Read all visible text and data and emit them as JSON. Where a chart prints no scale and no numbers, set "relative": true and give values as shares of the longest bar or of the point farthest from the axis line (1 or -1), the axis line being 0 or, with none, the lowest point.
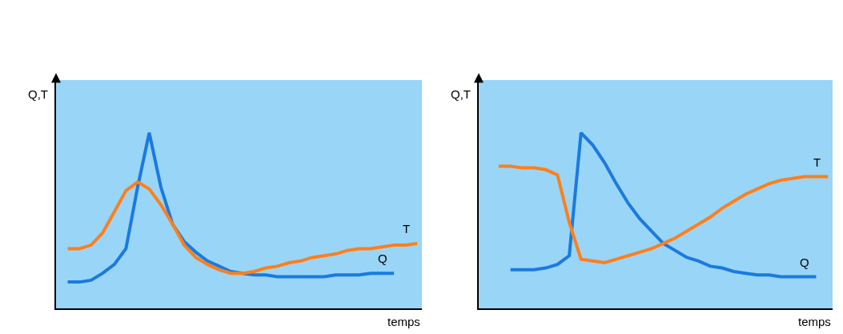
{
  "chart_data": [
    {
      "type": "line",
      "relative": true,
      "xlabel": "temps",
      "ylabel": "Q,T",
      "legend": false,
      "categories": [
        null,
        null,
        null,
        null,
        null,
        null,
        null,
        null,
        null,
        null,
        null,
        null,
        null,
        null,
        null,
        null,
        null,
        null,
        null,
        null,
        null,
        null,
        null,
        null,
        null,
        null,
        null,
        null,
        null,
        null,
        null
      ],
      "series": [
        {
          "name": "Q",
          "color": "#1a7ae0",
          "values": [
            0.15,
            0.15,
            0.16,
            0.2,
            0.25,
            0.34,
            0.69,
            1,
            0.69,
            0.48,
            0.38,
            0.32,
            0.27,
            0.24,
            0.21,
            0.2,
            0.19,
            0.19,
            0.18,
            0.18,
            0.18,
            0.18,
            0.18,
            0.19,
            0.19,
            0.19,
            0.2,
            0.2,
            0.2,
            null,
            null
          ]
        },
        {
          "name": "T",
          "color": "#ff7f1a",
          "values": [
            0.34,
            0.34,
            0.36,
            0.43,
            0.55,
            0.67,
            0.72,
            0.68,
            0.59,
            0.48,
            0.36,
            0.29,
            0.25,
            0.22,
            0.2,
            0.2,
            0.21,
            0.23,
            0.24,
            0.26,
            0.27,
            0.29,
            0.3,
            0.31,
            0.33,
            0.34,
            0.34,
            0.35,
            0.36,
            0.36,
            0.37
          ]
        }
      ]
    },
    {
      "type": "line",
      "relative": true,
      "xlabel": "temps",
      "ylabel": "Q,T",
      "legend": false,
      "categories": [
        null,
        null,
        null,
        null,
        null,
        null,
        null,
        null,
        null,
        null,
        null,
        null,
        null,
        null,
        null,
        null,
        null,
        null,
        null,
        null,
        null,
        null,
        null,
        null,
        null,
        null,
        null,
        null,
        null
      ],
      "series": [
        {
          "name": "Q",
          "color": "#1a7ae0",
          "values": [
            null,
            0.22,
            0.22,
            0.22,
            0.23,
            0.25,
            0.3,
            1,
            0.93,
            0.83,
            0.71,
            0.6,
            0.51,
            0.44,
            0.37,
            0.33,
            0.29,
            0.27,
            0.24,
            0.23,
            0.21,
            0.2,
            0.19,
            0.19,
            0.18,
            0.18,
            0.18,
            0.18,
            null
          ]
        },
        {
          "name": "T",
          "color": "#ff7f1a",
          "values": [
            0.81,
            0.81,
            0.8,
            0.8,
            0.79,
            0.76,
            0.49,
            0.28,
            0.27,
            0.26,
            0.28,
            0.3,
            0.32,
            0.34,
            0.37,
            0.4,
            0.44,
            0.48,
            0.52,
            0.57,
            0.61,
            0.65,
            0.68,
            0.71,
            0.73,
            0.74,
            0.75,
            0.75,
            0.75
          ]
        }
      ]
    }
  ]
}
